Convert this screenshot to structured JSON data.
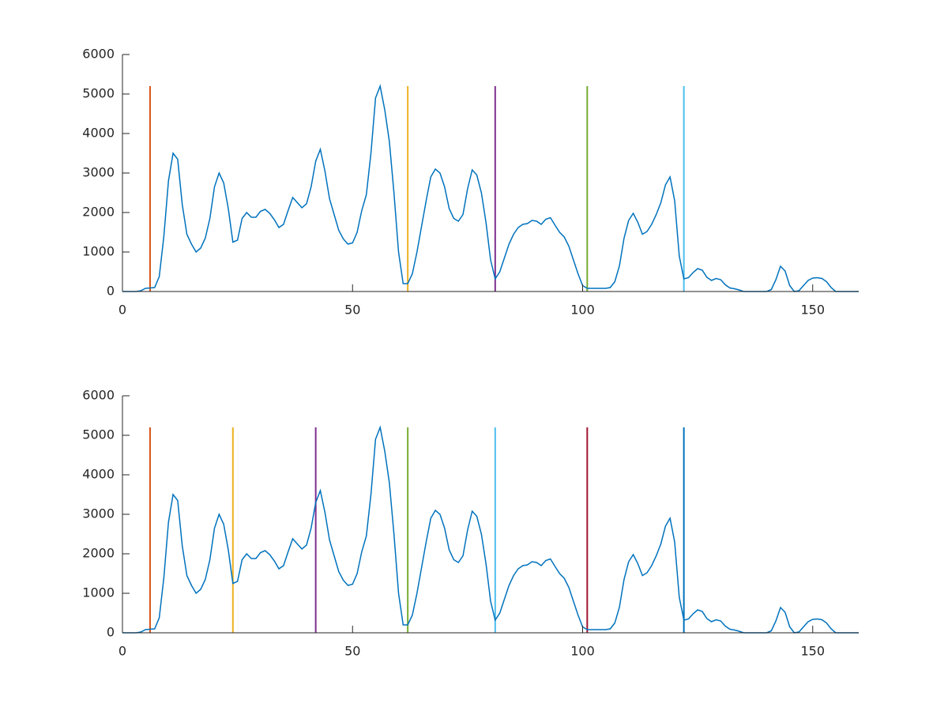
{
  "chart_data": [
    {
      "type": "line",
      "x": [
        0,
        1,
        2,
        3,
        4,
        5,
        6,
        7,
        8,
        9,
        10,
        11,
        12,
        13,
        14,
        15,
        16,
        17,
        18,
        19,
        20,
        21,
        22,
        23,
        24,
        25,
        26,
        27,
        28,
        29,
        30,
        31,
        32,
        33,
        34,
        35,
        36,
        37,
        38,
        39,
        40,
        41,
        42,
        43,
        44,
        45,
        46,
        47,
        48,
        49,
        50,
        51,
        52,
        53,
        54,
        55,
        56,
        57,
        58,
        59,
        60,
        61,
        62,
        63,
        64,
        65,
        66,
        67,
        68,
        69,
        70,
        71,
        72,
        73,
        74,
        75,
        76,
        77,
        78,
        79,
        80,
        81,
        82,
        83,
        84,
        85,
        86,
        87,
        88,
        89,
        90,
        91,
        92,
        93,
        94,
        95,
        96,
        97,
        98,
        99,
        100,
        101,
        102,
        103,
        104,
        105,
        106,
        107,
        108,
        109,
        110,
        111,
        112,
        113,
        114,
        115,
        116,
        117,
        118,
        119,
        120,
        121,
        122,
        123,
        124,
        125,
        126,
        127,
        128,
        129,
        130,
        131,
        132,
        133,
        134,
        135,
        136,
        137,
        138,
        139,
        140,
        141,
        142,
        143,
        144,
        145,
        146,
        147,
        148,
        149,
        150,
        151,
        152,
        153,
        154,
        155,
        156,
        157,
        158,
        159,
        160
      ],
      "series": [
        {
          "color": "#0072bd",
          "values": [
            0,
            0,
            0,
            0,
            20,
            80,
            90,
            100,
            380,
            1400,
            2800,
            3500,
            3350,
            2200,
            1450,
            1200,
            1000,
            1100,
            1350,
            1850,
            2650,
            3000,
            2750,
            2100,
            1250,
            1300,
            1850,
            2000,
            1880,
            1880,
            2030,
            2080,
            1980,
            1820,
            1620,
            1700,
            2050,
            2380,
            2250,
            2120,
            2220,
            2650,
            3300,
            3600,
            3050,
            2350,
            1950,
            1550,
            1330,
            1200,
            1230,
            1500,
            2050,
            2450,
            3500,
            4900,
            5200,
            4600,
            3800,
            2500,
            1000,
            200,
            200,
            450,
            1000,
            1650,
            2300,
            2900,
            3100,
            3000,
            2650,
            2100,
            1850,
            1780,
            1950,
            2600,
            3080,
            2950,
            2500,
            1750,
            800,
            320,
            500,
            850,
            1200,
            1450,
            1620,
            1700,
            1720,
            1800,
            1780,
            1700,
            1830,
            1870,
            1680,
            1500,
            1380,
            1150,
            800,
            450,
            150,
            80,
            80,
            80,
            80,
            80,
            100,
            250,
            650,
            1350,
            1800,
            1980,
            1750,
            1450,
            1520,
            1700,
            1950,
            2250,
            2700,
            2900,
            2300,
            900,
            320,
            350,
            480,
            580,
            540,
            360,
            280,
            330,
            300,
            170,
            90,
            70,
            40,
            0,
            0,
            0,
            0,
            0,
            0,
            50,
            300,
            640,
            520,
            150,
            0,
            20,
            150,
            280,
            340,
            350,
            330,
            250,
            100,
            0,
            0,
            0,
            0,
            0,
            0
          ]
        }
      ],
      "vlines": [
        {
          "x": 6,
          "top": 5200,
          "color": "#d95319"
        },
        {
          "x": 62,
          "top": 5200,
          "color": "#edb120"
        },
        {
          "x": 81,
          "top": 5200,
          "color": "#7e2f8e"
        },
        {
          "x": 101,
          "top": 5200,
          "color": "#77ac30"
        },
        {
          "x": 122,
          "top": 5200,
          "color": "#4dbeee"
        }
      ],
      "xlim": [
        0,
        160
      ],
      "xticks": [
        0,
        50,
        100,
        150
      ],
      "ylim": [
        0,
        6000
      ],
      "yticks": [
        0,
        1000,
        2000,
        3000,
        4000,
        5000,
        6000
      ]
    },
    {
      "type": "line",
      "x": [
        0,
        1,
        2,
        3,
        4,
        5,
        6,
        7,
        8,
        9,
        10,
        11,
        12,
        13,
        14,
        15,
        16,
        17,
        18,
        19,
        20,
        21,
        22,
        23,
        24,
        25,
        26,
        27,
        28,
        29,
        30,
        31,
        32,
        33,
        34,
        35,
        36,
        37,
        38,
        39,
        40,
        41,
        42,
        43,
        44,
        45,
        46,
        47,
        48,
        49,
        50,
        51,
        52,
        53,
        54,
        55,
        56,
        57,
        58,
        59,
        60,
        61,
        62,
        63,
        64,
        65,
        66,
        67,
        68,
        69,
        70,
        71,
        72,
        73,
        74,
        75,
        76,
        77,
        78,
        79,
        80,
        81,
        82,
        83,
        84,
        85,
        86,
        87,
        88,
        89,
        90,
        91,
        92,
        93,
        94,
        95,
        96,
        97,
        98,
        99,
        100,
        101,
        102,
        103,
        104,
        105,
        106,
        107,
        108,
        109,
        110,
        111,
        112,
        113,
        114,
        115,
        116,
        117,
        118,
        119,
        120,
        121,
        122,
        123,
        124,
        125,
        126,
        127,
        128,
        129,
        130,
        131,
        132,
        133,
        134,
        135,
        136,
        137,
        138,
        139,
        140,
        141,
        142,
        143,
        144,
        145,
        146,
        147,
        148,
        149,
        150,
        151,
        152,
        153,
        154,
        155,
        156,
        157,
        158,
        159,
        160
      ],
      "series": [
        {
          "color": "#0072bd",
          "values": [
            0,
            0,
            0,
            0,
            20,
            80,
            90,
            100,
            380,
            1400,
            2800,
            3500,
            3350,
            2200,
            1450,
            1200,
            1000,
            1100,
            1350,
            1850,
            2650,
            3000,
            2750,
            2100,
            1250,
            1300,
            1850,
            2000,
            1880,
            1880,
            2030,
            2080,
            1980,
            1820,
            1620,
            1700,
            2050,
            2380,
            2250,
            2120,
            2220,
            2650,
            3300,
            3600,
            3050,
            2350,
            1950,
            1550,
            1330,
            1200,
            1230,
            1500,
            2050,
            2450,
            3500,
            4900,
            5200,
            4600,
            3800,
            2500,
            1000,
            200,
            200,
            450,
            1000,
            1650,
            2300,
            2900,
            3100,
            3000,
            2650,
            2100,
            1850,
            1780,
            1950,
            2600,
            3080,
            2950,
            2500,
            1750,
            800,
            320,
            500,
            850,
            1200,
            1450,
            1620,
            1700,
            1720,
            1800,
            1780,
            1700,
            1830,
            1870,
            1680,
            1500,
            1380,
            1150,
            800,
            450,
            150,
            80,
            80,
            80,
            80,
            80,
            100,
            250,
            650,
            1350,
            1800,
            1980,
            1750,
            1450,
            1520,
            1700,
            1950,
            2250,
            2700,
            2900,
            2300,
            900,
            320,
            350,
            480,
            580,
            540,
            360,
            280,
            330,
            300,
            170,
            90,
            70,
            40,
            0,
            0,
            0,
            0,
            0,
            0,
            50,
            300,
            640,
            520,
            150,
            0,
            20,
            150,
            280,
            340,
            350,
            330,
            250,
            100,
            0,
            0,
            0,
            0,
            0,
            0
          ]
        }
      ],
      "vlines": [
        {
          "x": 6,
          "top": 5200,
          "color": "#d95319"
        },
        {
          "x": 24,
          "top": 5200,
          "color": "#edb120"
        },
        {
          "x": 42,
          "top": 5200,
          "color": "#7e2f8e"
        },
        {
          "x": 62,
          "top": 5200,
          "color": "#77ac30"
        },
        {
          "x": 81,
          "top": 5200,
          "color": "#4dbeee"
        },
        {
          "x": 101,
          "top": 5200,
          "color": "#a2142f"
        },
        {
          "x": 122,
          "top": 5200,
          "color": "#0072bd"
        }
      ],
      "xlim": [
        0,
        160
      ],
      "xticks": [
        0,
        50,
        100,
        150
      ],
      "ylim": [
        0,
        6000
      ],
      "yticks": [
        0,
        1000,
        2000,
        3000,
        4000,
        5000,
        6000
      ]
    }
  ]
}
